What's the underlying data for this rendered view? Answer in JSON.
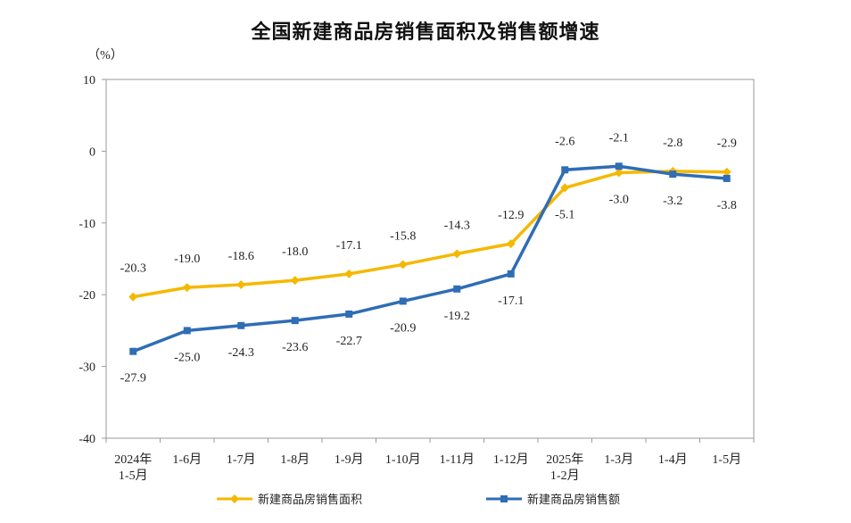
{
  "chart_data": {
    "type": "line",
    "title": "全国新建商品房销售面积及销售额增速",
    "y_unit": "（%）",
    "ylim": [
      -40,
      10
    ],
    "yticks": [
      10,
      0,
      -10,
      -20,
      -30,
      -40
    ],
    "categories": [
      [
        "2024年",
        "1-5月"
      ],
      [
        "1-6月"
      ],
      [
        "1-7月"
      ],
      [
        "1-8月"
      ],
      [
        "1-9月"
      ],
      [
        "1-10月"
      ],
      [
        "1-11月"
      ],
      [
        "1-12月"
      ],
      [
        "2025年",
        "1-2月"
      ],
      [
        "1-3月"
      ],
      [
        "1-4月"
      ],
      [
        "1-5月"
      ]
    ],
    "series": [
      {
        "name": "新建商品房销售面积",
        "color": "#f5b800",
        "marker": "diamond",
        "values": [
          -20.3,
          -19.0,
          -18.6,
          -18.0,
          -17.1,
          -15.8,
          -14.3,
          -12.9,
          -5.1,
          -3.0,
          -2.8,
          -2.9
        ],
        "labels": [
          "-20.3",
          "-19.0",
          "-18.6",
          "-18.0",
          "-17.1",
          "-15.8",
          "-14.3",
          "-12.9",
          "-5.1",
          "-3.0",
          "-2.8",
          "-2.9"
        ],
        "label_pos": [
          "above",
          "above",
          "above",
          "above",
          "above",
          "above",
          "above",
          "above",
          "below",
          "below",
          "above",
          "above"
        ]
      },
      {
        "name": "新建商品房销售额",
        "color": "#2f6db5",
        "marker": "square",
        "values": [
          -27.9,
          -25.0,
          -24.3,
          -23.6,
          -22.7,
          -20.9,
          -19.2,
          -17.1,
          -2.6,
          -2.1,
          -3.2,
          -3.8
        ],
        "labels": [
          "-27.9",
          "-25.0",
          "-24.3",
          "-23.6",
          "-22.7",
          "-20.9",
          "-19.2",
          "-17.1",
          "-2.6",
          "-2.1",
          "-3.2",
          "-3.8"
        ],
        "label_pos": [
          "below",
          "below",
          "below",
          "below",
          "below",
          "below",
          "below",
          "below",
          "above",
          "above",
          "below",
          "below"
        ]
      }
    ],
    "legend": "bottom",
    "grid": false
  }
}
